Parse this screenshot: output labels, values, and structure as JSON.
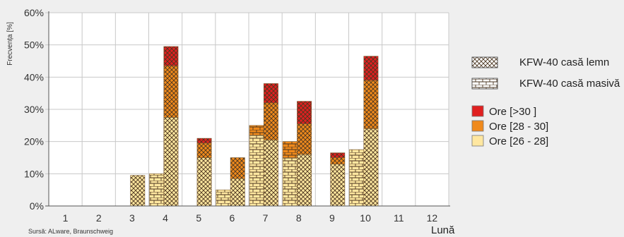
{
  "chart_data": {
    "type": "bar",
    "ylabel": "Frecvența [%]",
    "xlabel": "Lună",
    "ylim": [
      0,
      60
    ],
    "yticks": [
      "0%",
      "10%",
      "20%",
      "30%",
      "40%",
      "50%",
      "60%"
    ],
    "categories": [
      "1",
      "2",
      "3",
      "4",
      "5",
      "6",
      "7",
      "8",
      "9",
      "10",
      "11",
      "12"
    ],
    "house_types": [
      {
        "key": "masiva",
        "name": "KFW-40 casă masivă"
      },
      {
        "key": "lemn",
        "name": "KFW-40 casă lemn"
      }
    ],
    "levels": [
      {
        "name": "Ore [>30 ]",
        "color": "#e02020"
      },
      {
        "name": "Ore [28 - 30]",
        "color": "#f08a1c"
      },
      {
        "name": "Ore [26 - 28]",
        "color": "#ffe7a0"
      }
    ],
    "series": [
      {
        "house": "masiva",
        "ore_26_28": [
          0,
          0,
          0,
          10,
          0,
          5,
          22,
          15,
          0,
          17.5,
          0,
          0
        ],
        "ore_28_30": [
          0,
          0,
          0,
          0,
          0,
          0,
          3,
          5,
          0,
          0,
          0,
          0
        ],
        "ore_over_30": [
          0,
          0,
          0,
          0,
          0,
          0,
          0,
          0,
          0,
          0,
          0,
          0
        ]
      },
      {
        "house": "lemn",
        "ore_26_28": [
          0,
          0,
          9.5,
          27.5,
          15,
          8.5,
          20.5,
          16,
          13,
          24,
          0,
          0
        ],
        "ore_28_30": [
          0,
          0,
          0,
          16,
          4.5,
          6.5,
          11.5,
          9.5,
          2,
          15,
          0,
          0
        ],
        "ore_over_30": [
          0,
          0,
          0,
          6,
          1.5,
          0,
          6,
          7,
          1.5,
          7.5,
          0,
          0
        ]
      }
    ]
  },
  "source": "Sursă: ALware, Braunschweig"
}
